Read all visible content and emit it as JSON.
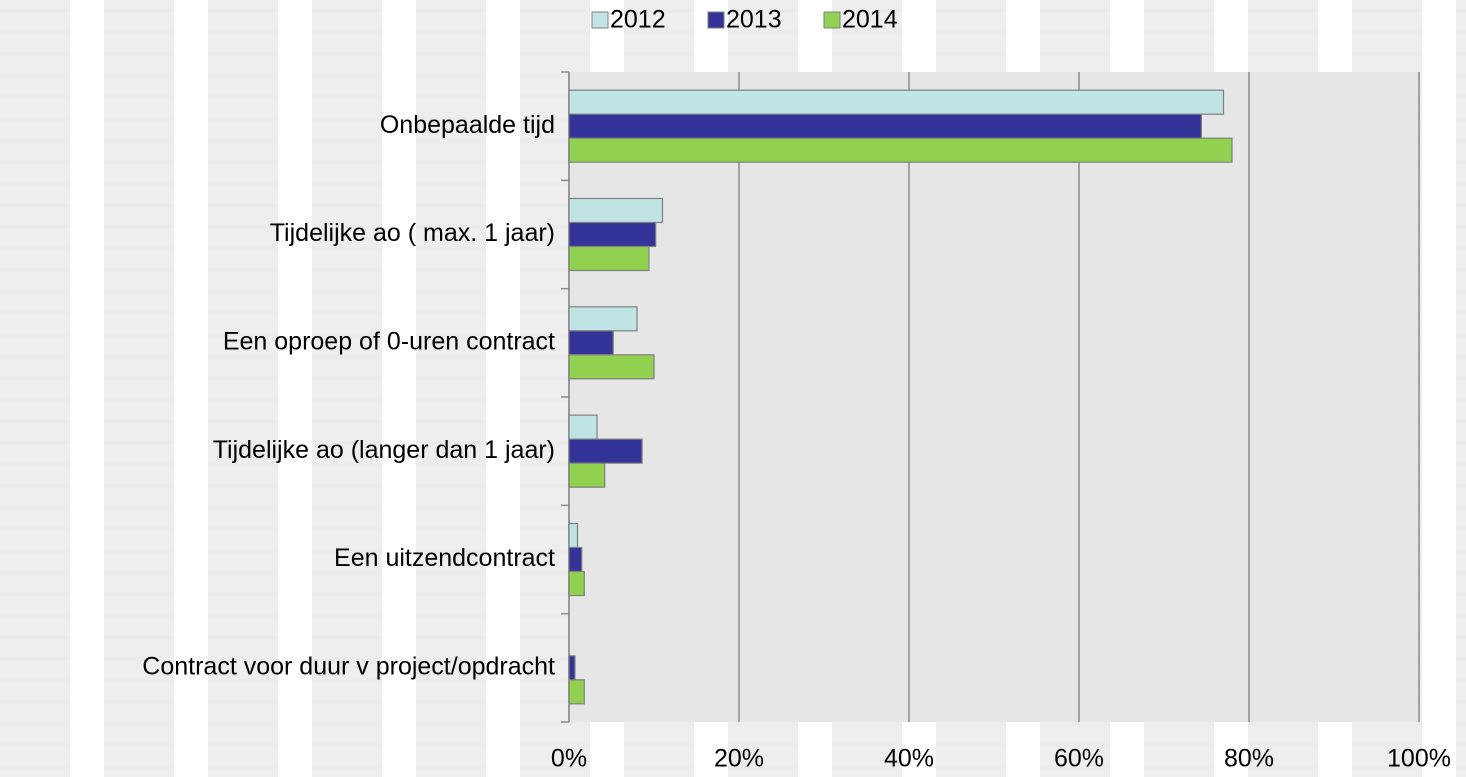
{
  "chart_data": {
    "type": "hbar",
    "categories": [
      "Onbepaalde tijd",
      "Tijdelijke ao ( max. 1 jaar)",
      "Een oproep of 0-uren contract",
      "Tijdelijke ao (langer dan 1 jaar)",
      "Een uitzendcontract",
      "Contract voor duur v project/opdracht"
    ],
    "series": [
      {
        "name": "2012",
        "color": "#c0e4e4",
        "values": [
          77,
          11,
          8,
          3.3,
          1,
          0
        ]
      },
      {
        "name": "2013",
        "color": "#333399",
        "values": [
          74.4,
          10.2,
          5.2,
          8.6,
          1.5,
          0.7
        ]
      },
      {
        "name": "2014",
        "color": "#92d050",
        "values": [
          78,
          9.4,
          10,
          4.2,
          1.8,
          1.8
        ]
      }
    ],
    "xlim": [
      0,
      100
    ],
    "xticks": [
      {
        "value": 0,
        "label": "0%"
      },
      {
        "value": 20,
        "label": "20%"
      },
      {
        "value": 40,
        "label": "40%"
      },
      {
        "value": 60,
        "label": "60%"
      },
      {
        "value": 80,
        "label": "80%"
      },
      {
        "value": 100,
        "label": "100%"
      }
    ],
    "grid": true,
    "legend": "top"
  }
}
